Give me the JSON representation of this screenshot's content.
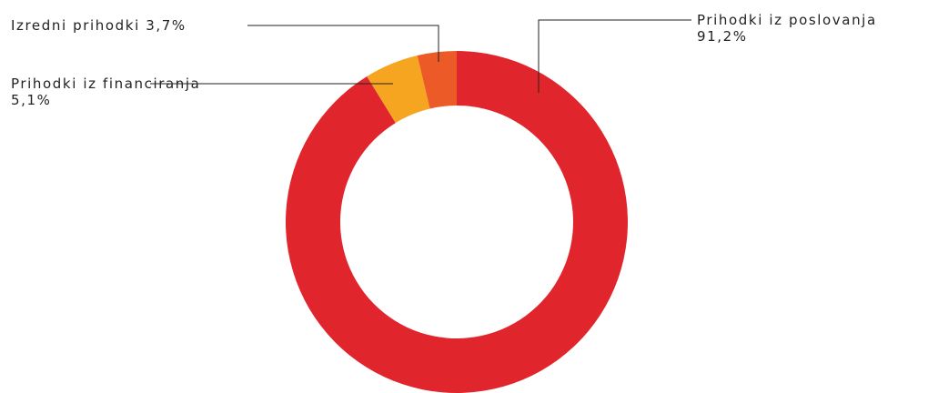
{
  "chart_data": {
    "type": "donut",
    "categories": [
      "Prihodki iz poslovanja",
      "Prihodki iz financiranja",
      "Izredni prihodki"
    ],
    "values": [
      91.2,
      5.1,
      3.7
    ],
    "value_labels": [
      "91,2%",
      "5,1%",
      "3,7%"
    ],
    "colors": [
      "#e1252d",
      "#f5a51f",
      "#ec5a27"
    ]
  }
}
